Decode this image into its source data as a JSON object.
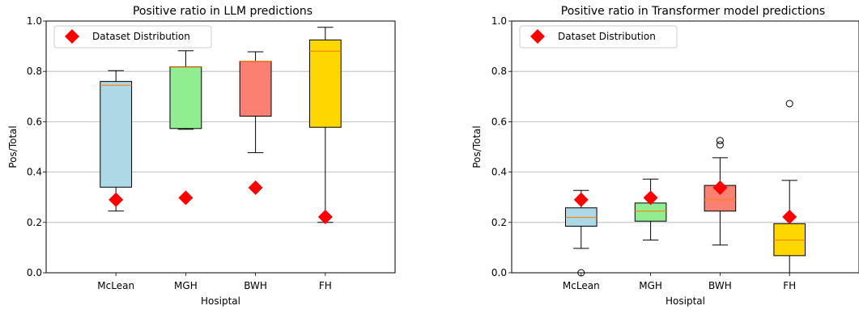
{
  "chart_data": [
    {
      "type": "box",
      "title": "Positive ratio in LLM predictions",
      "xlabel": "Hosiptal",
      "ylabel": "Pos/Total",
      "ylim": [
        0.0,
        1.0
      ],
      "yticks": [
        "0.0",
        "0.2",
        "0.4",
        "0.6",
        "0.8",
        "1.0"
      ],
      "grid": "horizontal",
      "categories": [
        "McLean",
        "MGH",
        "BWH",
        "FH"
      ],
      "box_colors": [
        "#add8e6",
        "#90ee90",
        "#fa8072",
        "#ffd700"
      ],
      "boxes": [
        {
          "whisker_low": 0.245,
          "q1": 0.34,
          "median": 0.745,
          "q3": 0.76,
          "whisker_high": 0.803,
          "outliers": []
        },
        {
          "whisker_low": 0.57,
          "q1": 0.573,
          "median": 0.817,
          "q3": 0.818,
          "whisker_high": 0.882,
          "outliers": []
        },
        {
          "whisker_low": 0.477,
          "q1": 0.622,
          "median": 0.84,
          "q3": 0.84,
          "whisker_high": 0.878,
          "outliers": []
        },
        {
          "whisker_low": 0.2,
          "q1": 0.578,
          "median": 0.88,
          "q3": 0.925,
          "whisker_high": 0.975,
          "outliers": []
        }
      ],
      "markers": {
        "name": "Dataset Distribution",
        "color": "#ff0000",
        "values": [
          0.29,
          0.298,
          0.338,
          0.222
        ]
      },
      "legend_placement": "upper left"
    },
    {
      "type": "box",
      "title": "Positive ratio in Transformer model predictions",
      "xlabel": "Hosiptal",
      "ylabel": "Pos/Total",
      "ylim": [
        0.0,
        1.0
      ],
      "yticks": [
        "0.0",
        "0.2",
        "0.4",
        "0.6",
        "0.8",
        "1.0"
      ],
      "grid": "horizontal",
      "categories": [
        "McLean",
        "MGH",
        "BWH",
        "FH"
      ],
      "box_colors": [
        "#add8e6",
        "#90ee90",
        "#fa8072",
        "#ffd700"
      ],
      "boxes": [
        {
          "whisker_low": 0.097,
          "q1": 0.185,
          "median": 0.22,
          "q3": 0.258,
          "whisker_high": 0.327,
          "outliers": [
            0.0
          ]
        },
        {
          "whisker_low": 0.13,
          "q1": 0.205,
          "median": 0.245,
          "q3": 0.277,
          "whisker_high": 0.372,
          "outliers": []
        },
        {
          "whisker_low": 0.11,
          "q1": 0.245,
          "median": 0.29,
          "q3": 0.347,
          "whisker_high": 0.457,
          "outliers": [
            0.508,
            0.525
          ]
        },
        {
          "whisker_low": 0.0,
          "q1": 0.068,
          "median": 0.13,
          "q3": 0.195,
          "whisker_high": 0.367,
          "outliers": [
            0.672
          ]
        }
      ],
      "markers": {
        "name": "Dataset Distribution",
        "color": "#ff0000",
        "values": [
          0.29,
          0.298,
          0.338,
          0.222
        ]
      },
      "legend_placement": "upper left"
    }
  ]
}
